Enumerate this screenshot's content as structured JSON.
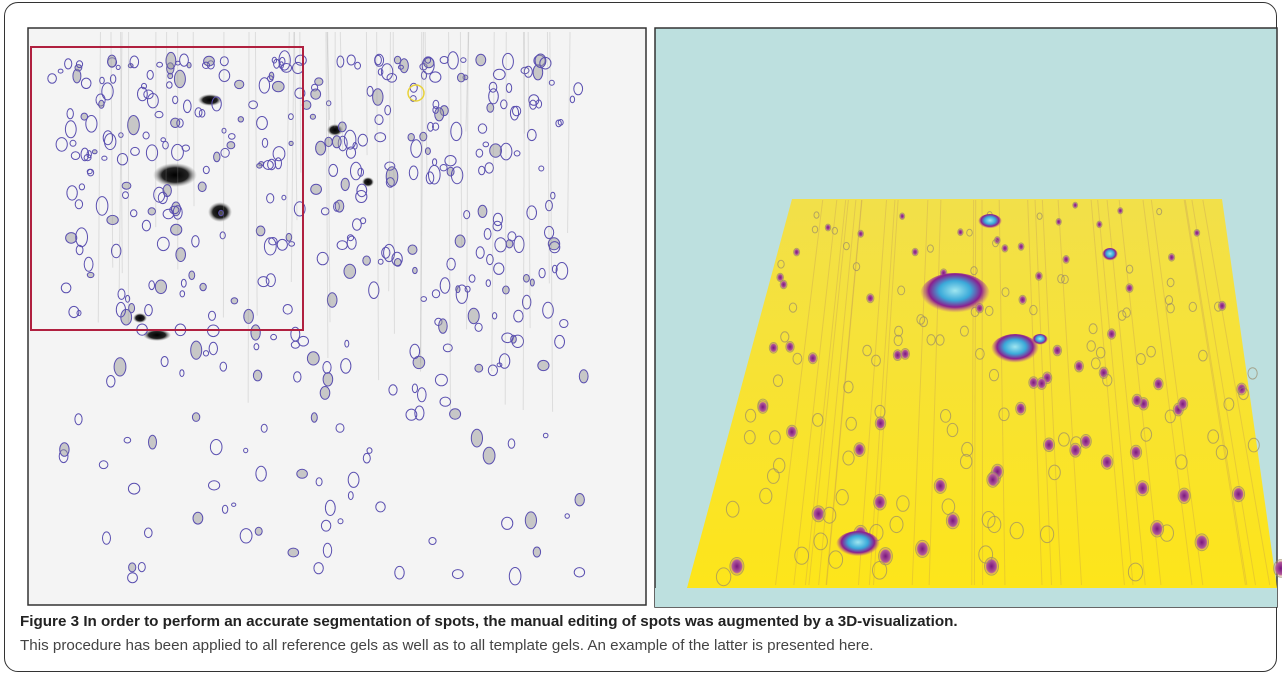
{
  "figure": {
    "label": "Figure 3",
    "title": "In order to perform an accurate segmentation of spots, the manual editing of spots was augmented by a 3D-visualization.",
    "caption": "This procedure has been applied to all reference gels as well as to all template gels. An example of the latter is presented here."
  }
}
